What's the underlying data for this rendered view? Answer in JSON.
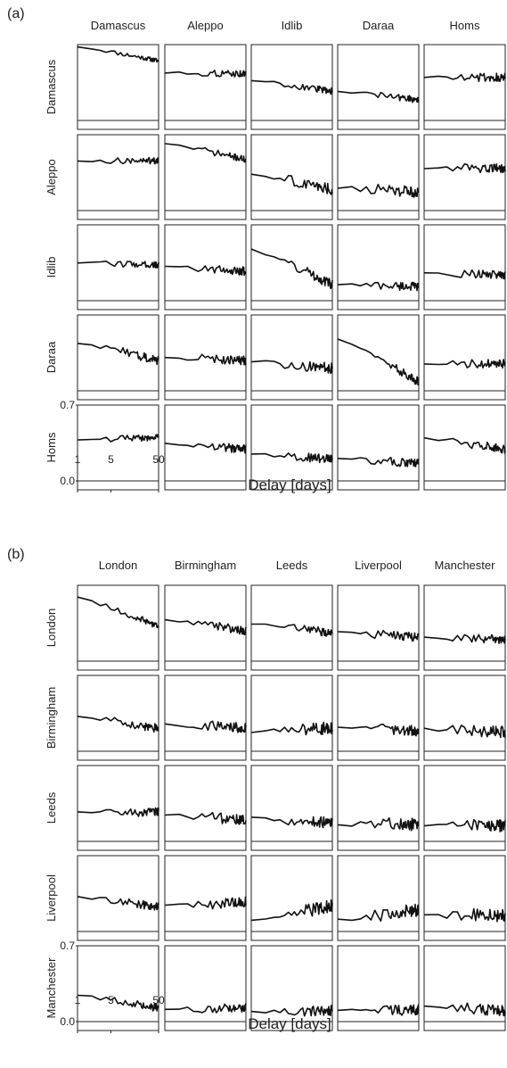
{
  "chart_data": [
    {
      "panel": "(a)",
      "type": "line",
      "columns": [
        "Damascus",
        "Aleppo",
        "Idlib",
        "Daraa",
        "Homs"
      ],
      "rows": [
        "Damascus",
        "Aleppo",
        "Idlib",
        "Daraa",
        "Homs"
      ],
      "xlabel": "Delay [days]",
      "xscale": "log",
      "xlim": [
        1,
        50
      ],
      "x_ticks": [
        "1",
        "5",
        "50"
      ],
      "ylim": [
        0.0,
        0.7
      ],
      "y_ticks": [
        "0.0",
        "0.7"
      ],
      "levels": [
        [
          [
            0.68,
            0.55
          ],
          [
            0.44,
            0.43
          ],
          [
            0.37,
            0.27
          ],
          [
            0.27,
            0.19
          ],
          [
            0.4,
            0.4
          ]
        ],
        [
          [
            0.46,
            0.46
          ],
          [
            0.62,
            0.47
          ],
          [
            0.34,
            0.19
          ],
          [
            0.21,
            0.17
          ],
          [
            0.39,
            0.39
          ]
        ],
        [
          [
            0.35,
            0.33
          ],
          [
            0.32,
            0.27
          ],
          [
            0.48,
            0.15
          ],
          [
            0.15,
            0.13
          ],
          [
            0.26,
            0.24
          ]
        ],
        [
          [
            0.44,
            0.28
          ],
          [
            0.31,
            0.28
          ],
          [
            0.27,
            0.21
          ],
          [
            0.48,
            0.08
          ],
          [
            0.25,
            0.25
          ]
        ],
        [
          [
            0.38,
            0.4
          ],
          [
            0.35,
            0.29
          ],
          [
            0.25,
            0.2
          ],
          [
            0.21,
            0.16
          ],
          [
            0.4,
            0.29
          ]
        ]
      ],
      "noise": [
        [
          0.02,
          0.03,
          0.03,
          0.03,
          0.04
        ],
        [
          0.03,
          0.03,
          0.05,
          0.05,
          0.04
        ],
        [
          0.03,
          0.04,
          0.05,
          0.04,
          0.04
        ],
        [
          0.04,
          0.04,
          0.05,
          0.04,
          0.04
        ],
        [
          0.03,
          0.04,
          0.04,
          0.04,
          0.04
        ]
      ]
    },
    {
      "panel": "(b)",
      "type": "line",
      "columns": [
        "London",
        "Birmingham",
        "Leeds",
        "Liverpool",
        "Manchester"
      ],
      "rows": [
        "London",
        "Birmingham",
        "Leeds",
        "Liverpool",
        "Manchester"
      ],
      "xlabel": "Delay [days]",
      "xscale": "log",
      "xlim": [
        1,
        50
      ],
      "x_ticks": [
        "1",
        "5",
        "50"
      ],
      "ylim": [
        0.0,
        0.7
      ],
      "y_ticks": [
        "0.0",
        "0.7"
      ],
      "levels": [
        [
          [
            0.59,
            0.32
          ],
          [
            0.38,
            0.28
          ],
          [
            0.34,
            0.26
          ],
          [
            0.27,
            0.22
          ],
          [
            0.22,
            0.2
          ]
        ],
        [
          [
            0.32,
            0.21
          ],
          [
            0.25,
            0.22
          ],
          [
            0.17,
            0.22
          ],
          [
            0.22,
            0.19
          ],
          [
            0.21,
            0.17
          ]
        ],
        [
          [
            0.27,
            0.27
          ],
          [
            0.24,
            0.2
          ],
          [
            0.22,
            0.17
          ],
          [
            0.15,
            0.16
          ],
          [
            0.14,
            0.15
          ]
        ],
        [
          [
            0.32,
            0.23
          ],
          [
            0.24,
            0.27
          ],
          [
            0.1,
            0.24
          ],
          [
            0.11,
            0.2
          ],
          [
            0.15,
            0.15
          ]
        ],
        [
          [
            0.24,
            0.13
          ],
          [
            0.11,
            0.13
          ],
          [
            0.09,
            0.1
          ],
          [
            0.1,
            0.11
          ],
          [
            0.14,
            0.1
          ]
        ]
      ],
      "noise": [
        [
          0.03,
          0.04,
          0.04,
          0.04,
          0.04
        ],
        [
          0.04,
          0.05,
          0.06,
          0.05,
          0.06
        ],
        [
          0.04,
          0.05,
          0.05,
          0.06,
          0.06
        ],
        [
          0.04,
          0.05,
          0.06,
          0.06,
          0.06
        ],
        [
          0.04,
          0.04,
          0.05,
          0.05,
          0.05
        ]
      ]
    }
  ]
}
